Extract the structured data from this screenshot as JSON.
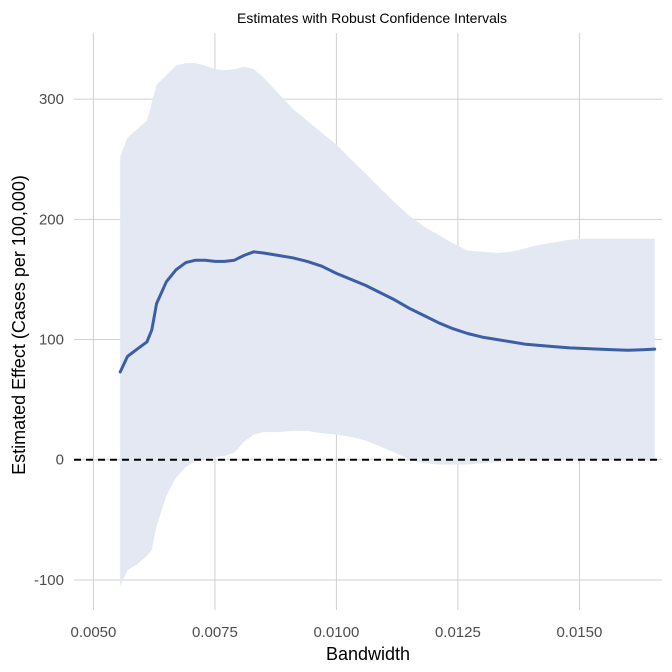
{
  "chart_data": {
    "type": "line",
    "title": "Estimates with Robust Confidence Intervals",
    "xlabel": "Bandwidth",
    "ylabel": "Estimated Effect (Cases per 100,000)",
    "xlim": [
      0.0046,
      0.0167
    ],
    "ylim": [
      -125,
      355
    ],
    "x_ticks": [
      0.005,
      0.0075,
      0.01,
      0.0125,
      0.015
    ],
    "x_tick_labels": [
      "0.0050",
      "0.0075",
      "0.0100",
      "0.0125",
      "0.0150"
    ],
    "y_ticks": [
      -100,
      0,
      100,
      200,
      300
    ],
    "y_tick_labels": [
      "-100",
      "0",
      "100",
      "200",
      "300"
    ],
    "grid": true,
    "reference_line": {
      "y": 0,
      "style": "dashed",
      "color": "#000000"
    },
    "colors": {
      "line": "#3c5ea8",
      "band": "#e3e8f3"
    },
    "x": [
      0.00555,
      0.0057,
      0.0059,
      0.0061,
      0.0062,
      0.0063,
      0.0065,
      0.0067,
      0.0069,
      0.0071,
      0.0073,
      0.0075,
      0.0077,
      0.0079,
      0.0081,
      0.0083,
      0.0085,
      0.0088,
      0.0091,
      0.0094,
      0.0097,
      0.01,
      0.0103,
      0.0106,
      0.0109,
      0.0112,
      0.0115,
      0.0118,
      0.0121,
      0.0124,
      0.0127,
      0.013,
      0.0133,
      0.0136,
      0.0139,
      0.0142,
      0.0145,
      0.0148,
      0.0151,
      0.0154,
      0.0157,
      0.016,
      0.0163,
      0.01655
    ],
    "series": [
      {
        "values": [
          73,
          86,
          92,
          98,
          108,
          130,
          148,
          158,
          164,
          166,
          166,
          165,
          165,
          166,
          170,
          173,
          172,
          170,
          168,
          165,
          161,
          155,
          150,
          145,
          139,
          133,
          126,
          120,
          114,
          109,
          105,
          102,
          100,
          98,
          96,
          95,
          94,
          93,
          92.5,
          92,
          91.5,
          91,
          91.5,
          92
        ]
      }
    ],
    "ci_lower": [
      -105,
      -92,
      -87,
      -80,
      -75,
      -55,
      -30,
      -15,
      -6,
      -1,
      1,
      2,
      3,
      6,
      15,
      21,
      23,
      23,
      24,
      24,
      22,
      21,
      19,
      16,
      11,
      6,
      0,
      -3,
      -4,
      -4,
      -4,
      -3,
      -2,
      -1,
      0,
      0,
      0,
      0,
      0,
      0,
      0,
      0,
      0,
      0
    ],
    "ci_upper": [
      252,
      268,
      275,
      282,
      297,
      312,
      320,
      328,
      330,
      330,
      328,
      325,
      324,
      325,
      327,
      325,
      318,
      305,
      292,
      282,
      272,
      262,
      250,
      238,
      226,
      214,
      203,
      194,
      187,
      180,
      174,
      173,
      172,
      173,
      176,
      179,
      181,
      183,
      184,
      184,
      184,
      184,
      184,
      184
    ]
  }
}
